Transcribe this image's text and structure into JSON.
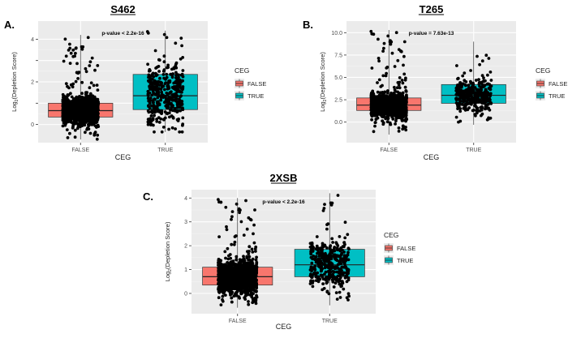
{
  "colors": {
    "panel_bg": "#ebebeb",
    "grid_major": "#ffffff",
    "grid_minor": "#f4f4f4",
    "false_fill": "#f8766d",
    "true_fill": "#00bfc4",
    "points": "#000000",
    "axis_text": "#4d4d4d"
  },
  "chart_data": [
    {
      "type": "box",
      "panel_letter": "A.",
      "title": "S462",
      "annotation": "p-value < 2.2e-16",
      "xlabel": "CEG",
      "ylabel_prefix": "Log",
      "ylabel_sub": "2",
      "ylabel_suffix": "(Depletion Score)",
      "categories": [
        "FALSE",
        "TRUE"
      ],
      "ylim": [
        -0.85,
        4.85
      ],
      "yticks": [
        0,
        1,
        2,
        3,
        4
      ],
      "ytick_labels": [
        "0",
        "",
        "2",
        "",
        "4"
      ],
      "boxes": [
        {
          "category": "FALSE",
          "q1": 0.35,
          "median": 0.65,
          "q3": 1.0,
          "lower": -0.7,
          "upper": 4.2,
          "jitter_count": 1400
        },
        {
          "category": "TRUE",
          "q1": 0.7,
          "median": 1.35,
          "q3": 2.35,
          "lower": -0.35,
          "upper": 4.4,
          "jitter_count": 380
        }
      ],
      "legend": {
        "title": "CEG",
        "entries": [
          "FALSE",
          "TRUE"
        ],
        "position": "right"
      }
    },
    {
      "type": "box",
      "panel_letter": "B.",
      "title": "T265",
      "annotation": "p-value = 7.63e-13",
      "xlabel": "CEG",
      "ylabel_prefix": "Log",
      "ylabel_sub": "2",
      "ylabel_suffix": "(Depletion Score)",
      "categories": [
        "FALSE",
        "TRUE"
      ],
      "ylim": [
        -2.3,
        11.3
      ],
      "yticks": [
        0,
        2.5,
        5,
        7.5,
        10
      ],
      "ytick_labels": [
        "0.0",
        "2.5",
        "5.0",
        "7.5",
        "10.0"
      ],
      "boxes": [
        {
          "category": "FALSE",
          "q1": 1.3,
          "median": 1.9,
          "q3": 2.7,
          "lower": -1.4,
          "upper": 10.3,
          "jitter_count": 1400
        },
        {
          "category": "TRUE",
          "q1": 2.1,
          "median": 3.0,
          "q3": 4.2,
          "lower": -0.3,
          "upper": 9.0,
          "jitter_count": 380
        }
      ],
      "legend": {
        "title": "CEG",
        "entries": [
          "FALSE",
          "TRUE"
        ],
        "position": "right"
      }
    },
    {
      "type": "box",
      "panel_letter": "C.",
      "title": "2XSB",
      "annotation": "p-value < 2.2e-16",
      "xlabel": "CEG",
      "ylabel_prefix": "Log",
      "ylabel_sub": "2",
      "ylabel_suffix": "(Depletion Score)",
      "categories": [
        "FALSE",
        "TRUE"
      ],
      "ylim": [
        -0.85,
        4.35
      ],
      "yticks": [
        0,
        1,
        2,
        3,
        4
      ],
      "ytick_labels": [
        "0",
        "1",
        "2",
        "3",
        "4"
      ],
      "boxes": [
        {
          "category": "FALSE",
          "q1": 0.35,
          "median": 0.7,
          "q3": 1.1,
          "lower": -0.6,
          "upper": 4.0,
          "jitter_count": 1400
        },
        {
          "category": "TRUE",
          "q1": 0.7,
          "median": 1.2,
          "q3": 1.85,
          "lower": -0.5,
          "upper": 4.2,
          "jitter_count": 380
        }
      ],
      "legend": {
        "title": "CEG",
        "entries": [
          "FALSE",
          "TRUE"
        ],
        "position": "right"
      }
    }
  ]
}
